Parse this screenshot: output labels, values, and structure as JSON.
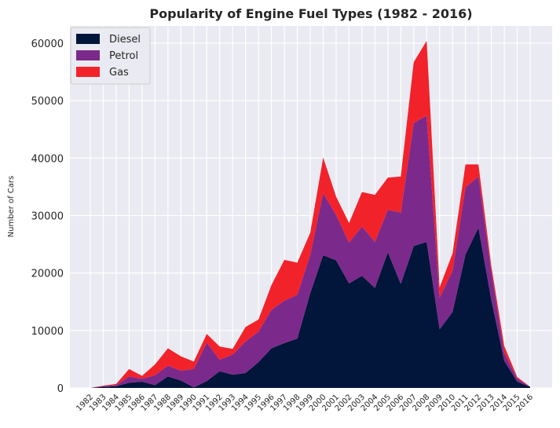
{
  "chart_data": {
    "type": "area",
    "stacked": true,
    "title": "Popularity of Engine Fuel Types (1982 - 2016)",
    "xlabel": "",
    "ylabel": "Number of Cars",
    "ylim": [
      0,
      63000
    ],
    "yticks": [
      0,
      10000,
      20000,
      30000,
      40000,
      50000,
      60000
    ],
    "grid": true,
    "legend_position": "top-left",
    "categories": [
      "1982",
      "1983",
      "1984",
      "1985",
      "1986",
      "1987",
      "1988",
      "1989",
      "1990",
      "1991",
      "1992",
      "1993",
      "1994",
      "1995",
      "1996",
      "1997",
      "1998",
      "1999",
      "2000",
      "2001",
      "2002",
      "2003",
      "2004",
      "2005",
      "2006",
      "2007",
      "2008",
      "2009",
      "2010",
      "2011",
      "2012",
      "2013",
      "2014",
      "2015",
      "2016"
    ],
    "series": [
      {
        "name": "Diesel",
        "color": "#02153b",
        "values": [
          0,
          200,
          300,
          900,
          1100,
          500,
          2000,
          1300,
          100,
          1200,
          2900,
          2300,
          2600,
          4500,
          6900,
          7800,
          8600,
          16500,
          23100,
          22200,
          18200,
          19500,
          17400,
          23600,
          18100,
          24700,
          25400,
          10200,
          13200,
          23200,
          27900,
          15300,
          4700,
          1100,
          200
        ]
      },
      {
        "name": "Petrol",
        "color": "#7b2a8b",
        "values": [
          0,
          100,
          200,
          1100,
          500,
          1700,
          1900,
          1700,
          3200,
          6700,
          2000,
          3500,
          5500,
          5300,
          6700,
          7400,
          7600,
          6700,
          10800,
          7900,
          7100,
          8600,
          8000,
          7400,
          12400,
          21400,
          22000,
          5500,
          7200,
          11700,
          8900,
          5000,
          1400,
          500,
          0
        ]
      },
      {
        "name": "Gas",
        "color": "#f2222b",
        "values": [
          0,
          100,
          200,
          1300,
          500,
          1900,
          3000,
          2500,
          1300,
          1500,
          2300,
          1000,
          2500,
          2100,
          4300,
          7100,
          5600,
          3800,
          6200,
          3200,
          3400,
          6000,
          8200,
          5600,
          6300,
          10600,
          13000,
          1800,
          3000,
          4000,
          2100,
          900,
          1200,
          300,
          0
        ]
      }
    ]
  }
}
